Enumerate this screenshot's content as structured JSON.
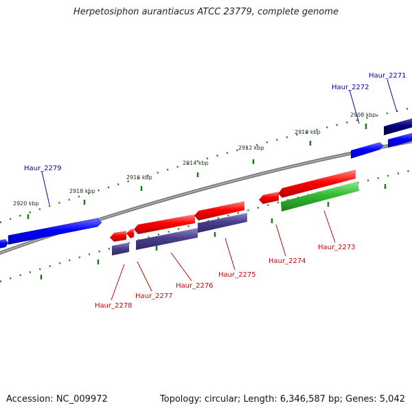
{
  "title": "Herpetosiphon aurantiacus ATCC 23779, complete genome",
  "footer": {
    "accession": "Accession: NC_009972",
    "summary": "Topology: circular; Length: 6,346,587 bp; Genes: 5,042"
  },
  "scale_labels": [
    "2908 kbp",
    "2910 kbp",
    "2912 kbp",
    "2914 kbp",
    "2916 kbp",
    "2918 kbp",
    "2920 kbp"
  ],
  "genes": [
    {
      "name": "Haur_2271",
      "color": "#00008b"
    },
    {
      "name": "Haur_2272",
      "color": "#0000ff"
    },
    {
      "name": "Haur_2273",
      "color": "#cc0000"
    },
    {
      "name": "Haur_2274",
      "color": "#cc0000"
    },
    {
      "name": "Haur_2275",
      "color": "#cc0000"
    },
    {
      "name": "Haur_2276",
      "color": "#cc0000"
    },
    {
      "name": "Haur_2277",
      "color": "#cc0000"
    },
    {
      "name": "Haur_2278",
      "color": "#cc0000"
    },
    {
      "name": "Haur_2279",
      "color": "#0000ff"
    }
  ],
  "colors": {
    "forward_strand": "#0000ff",
    "forward_strand_dark": "#00007a",
    "reverse_strand": "#ff0000",
    "orf_purple": "#4a3f8c",
    "orf_green": "#33bb33",
    "scale_ticks": "#1a7a1a",
    "backbone": "#808080"
  }
}
